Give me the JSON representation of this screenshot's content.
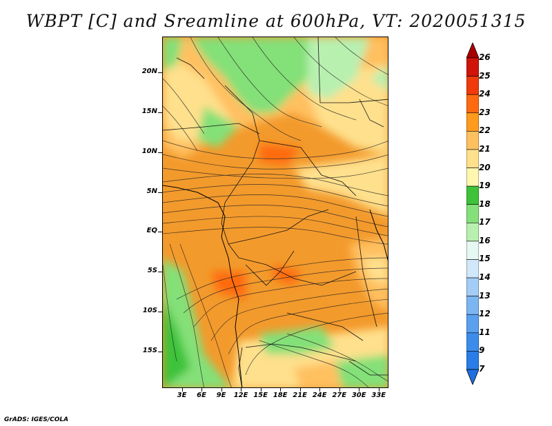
{
  "title": "WBPT [C] and Sreamline at 600hPa, VT: 2020051315",
  "footer": "GrADS: IGES/COLA",
  "map": {
    "lat_labels": [
      "20N",
      "15N",
      "10N",
      "5N",
      "EQ",
      "5S",
      "10S",
      "15S"
    ],
    "lat_values": [
      20,
      15,
      10,
      5,
      0,
      -5,
      -10,
      -15
    ],
    "lon_labels": [
      "3E",
      "6E",
      "9E",
      "12E",
      "15E",
      "18E",
      "21E",
      "24E",
      "27E",
      "30E",
      "33E"
    ],
    "lon_values": [
      3,
      6,
      9,
      12,
      15,
      18,
      21,
      24,
      27,
      30,
      33
    ],
    "lat_range": [
      -19.6,
      24.5
    ],
    "lon_range": [
      0,
      34.5
    ]
  },
  "colorbar": {
    "labels": [
      "7",
      "9",
      "11",
      "12",
      "13",
      "14",
      "15",
      "16",
      "17",
      "18",
      "19",
      "20",
      "21",
      "22",
      "23",
      "24",
      "25",
      "26"
    ],
    "colors": [
      "#1e6ee0",
      "#2a7de6",
      "#3c8ceb",
      "#5aa0ef",
      "#7bb6f2",
      "#a3cdf6",
      "#d0e8fa",
      "#e6f8f2",
      "#b8f0b0",
      "#84e078",
      "#3ec23a",
      "#fff6b0",
      "#ffe08c",
      "#ffc060",
      "#ff9a1e",
      "#ff6a10",
      "#f03a0c",
      "#d0140a",
      "#a80000"
    ]
  }
}
